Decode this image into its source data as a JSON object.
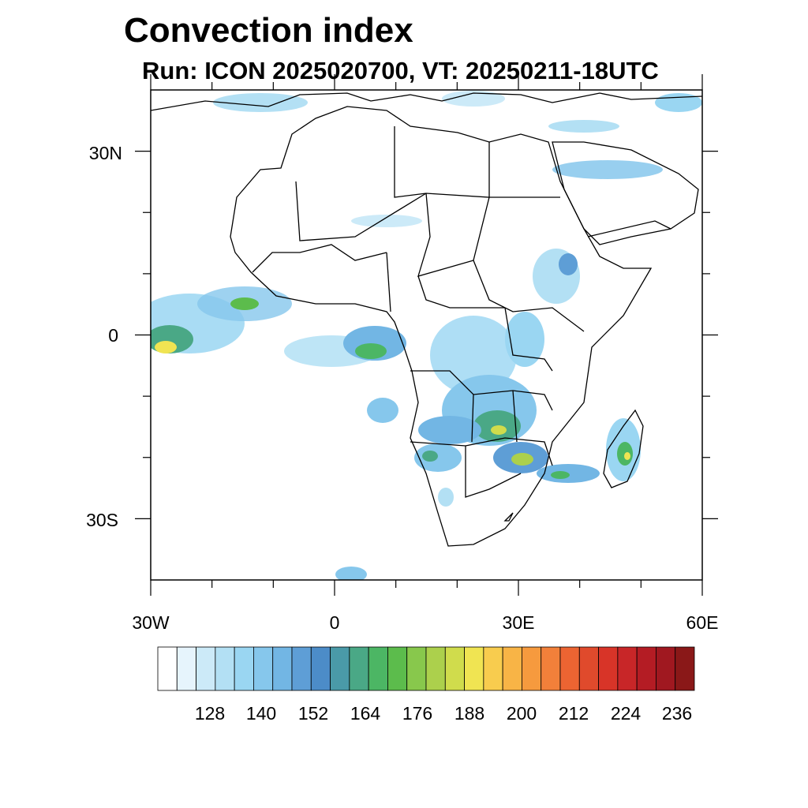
{
  "title": "Convection index",
  "subtitle": "Run: ICON 2025020700,  VT: 20250211-18UTC",
  "map": {
    "lat_ticks": [
      "30N",
      "0",
      "30S"
    ],
    "lon_ticks": [
      "30W",
      "0",
      "30E",
      "60E"
    ],
    "lon_range": [
      -30,
      60
    ],
    "lat_range": [
      -40,
      40
    ]
  },
  "colorbar": {
    "colors": [
      "#ffffff",
      "#e6f4fc",
      "#cceaf8",
      "#b3e0f4",
      "#9ad6f2",
      "#86c7ec",
      "#72b6e4",
      "#5e9ed6",
      "#4c8cc8",
      "#4a9aa8",
      "#4aa886",
      "#4cb664",
      "#5cbc4c",
      "#88c84c",
      "#acd04c",
      "#d0dc4c",
      "#f0e452",
      "#f8cc4e",
      "#f8b446",
      "#f69a3e",
      "#f2803a",
      "#ec6432",
      "#e04a2c",
      "#d83428",
      "#c82628",
      "#b41c24",
      "#a01820",
      "#8a1818"
    ],
    "labels": [
      "128",
      "140",
      "152",
      "164",
      "176",
      "188",
      "200",
      "212",
      "224",
      "236"
    ]
  }
}
